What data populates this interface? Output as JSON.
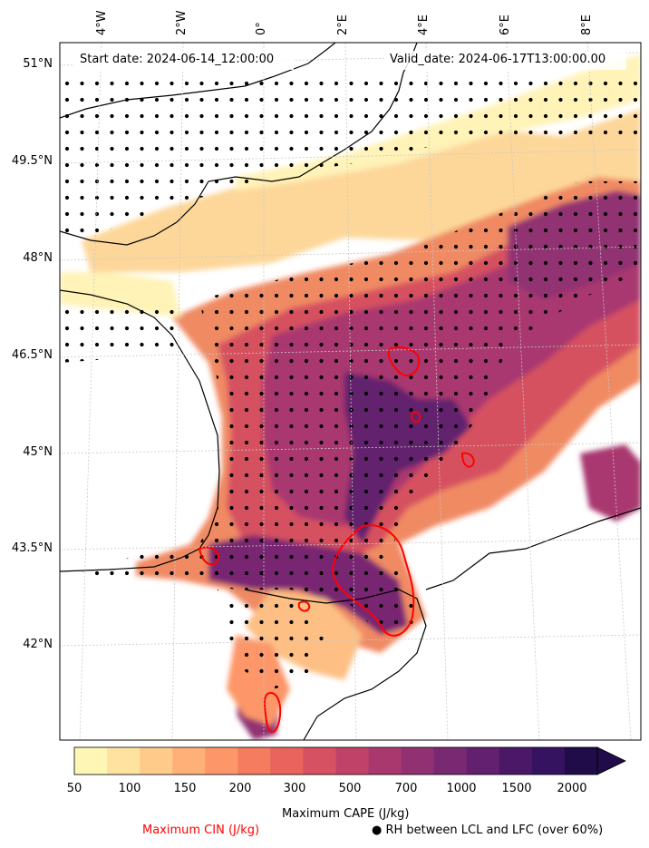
{
  "map": {
    "start_date": "Start date: 2024-06-14_12:00:00",
    "valid_date": "Valid_date: 2024-06-17T13:00:00.00",
    "lon_labels": [
      "4°W",
      "2°W",
      "0°",
      "2°E",
      "4°E",
      "6°E",
      "8°E"
    ],
    "lat_labels": [
      "51°N",
      "49.5°N",
      "48°N",
      "46.5°N",
      "45°N",
      "43.5°N",
      "42°N"
    ],
    "region": "France and northern Spain",
    "rh_dots": "dots over areas with RH between LCL and LFC over 60%",
    "cin_contour_color": "#ff0000"
  },
  "colorbar": {
    "title": "Maximum CAPE (J/kg)",
    "tick_labels": [
      "50",
      "100",
      "150",
      "200",
      "300",
      "500",
      "700",
      "1000",
      "1500",
      "2000"
    ],
    "colors": [
      "#fdf6b4",
      "#fde2a0",
      "#fecb8a",
      "#feb078",
      "#fd9668",
      "#f57c5e",
      "#e8645d",
      "#d65161",
      "#c04268",
      "#a9386f",
      "#913172",
      "#792872",
      "#62206e",
      "#4b1868",
      "#351360",
      "#1f0c48"
    ],
    "extend": "max"
  },
  "legend": {
    "cin_label": "Maximum CIN (J/kg)",
    "rh_label": "● RH between LCL and LFC (over 60%)"
  }
}
